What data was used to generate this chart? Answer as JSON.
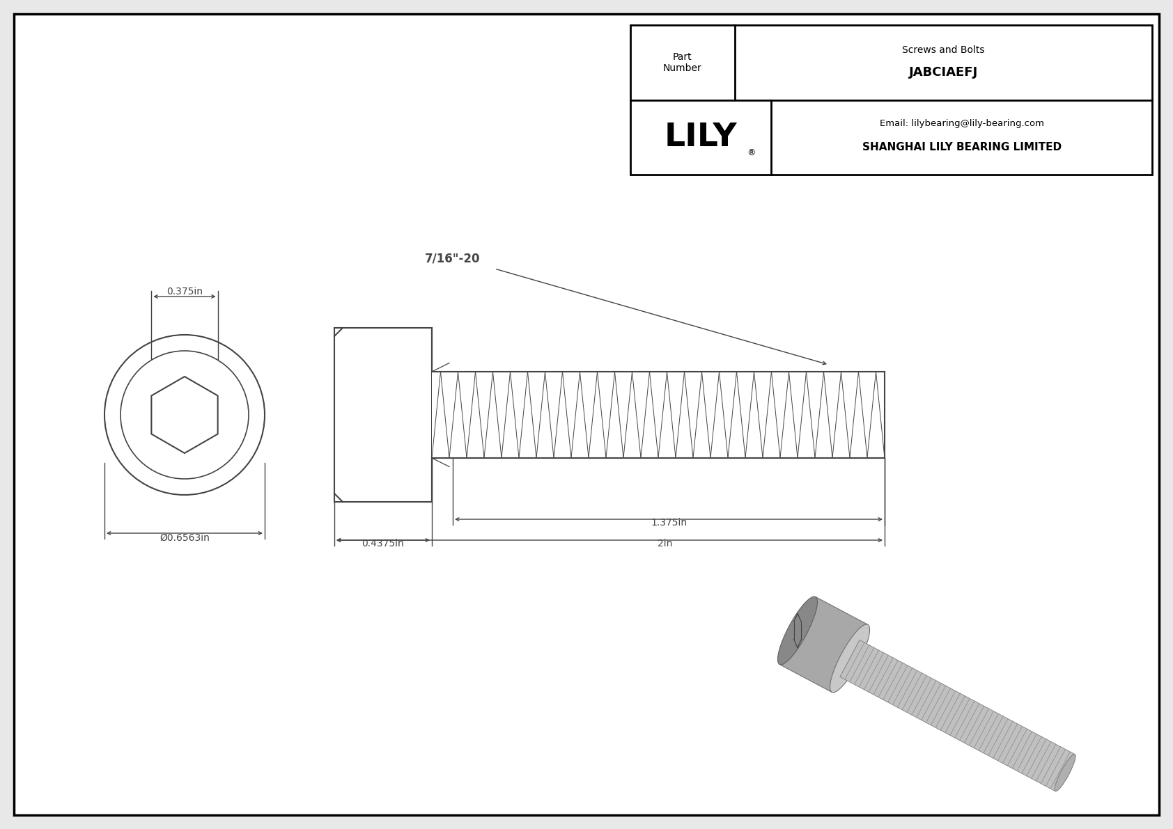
{
  "bg_color": "#e8e8e8",
  "drawing_bg": "#ffffff",
  "border_color": "#000000",
  "line_color": "#444444",
  "title": "JABCIAEFJ",
  "subtitle": "Screws and Bolts",
  "company": "SHANGHAI LILY BEARING LIMITED",
  "email": "Email: lilybearing@lily-bearing.com",
  "part_label": "Part\nNumber",
  "dim_head_diameter": "Ø0.6563in",
  "dim_head_width": "0.375in",
  "dim_shank_length": "0.4375in",
  "dim_total_length": "2in",
  "dim_thread_length": "1.375in",
  "dim_thread_label": "7/16\"-20",
  "font_size_dim": 10,
  "font_size_title": 13,
  "font_size_company": 10,
  "font_size_logo": 34,
  "logo_text": "LILY"
}
